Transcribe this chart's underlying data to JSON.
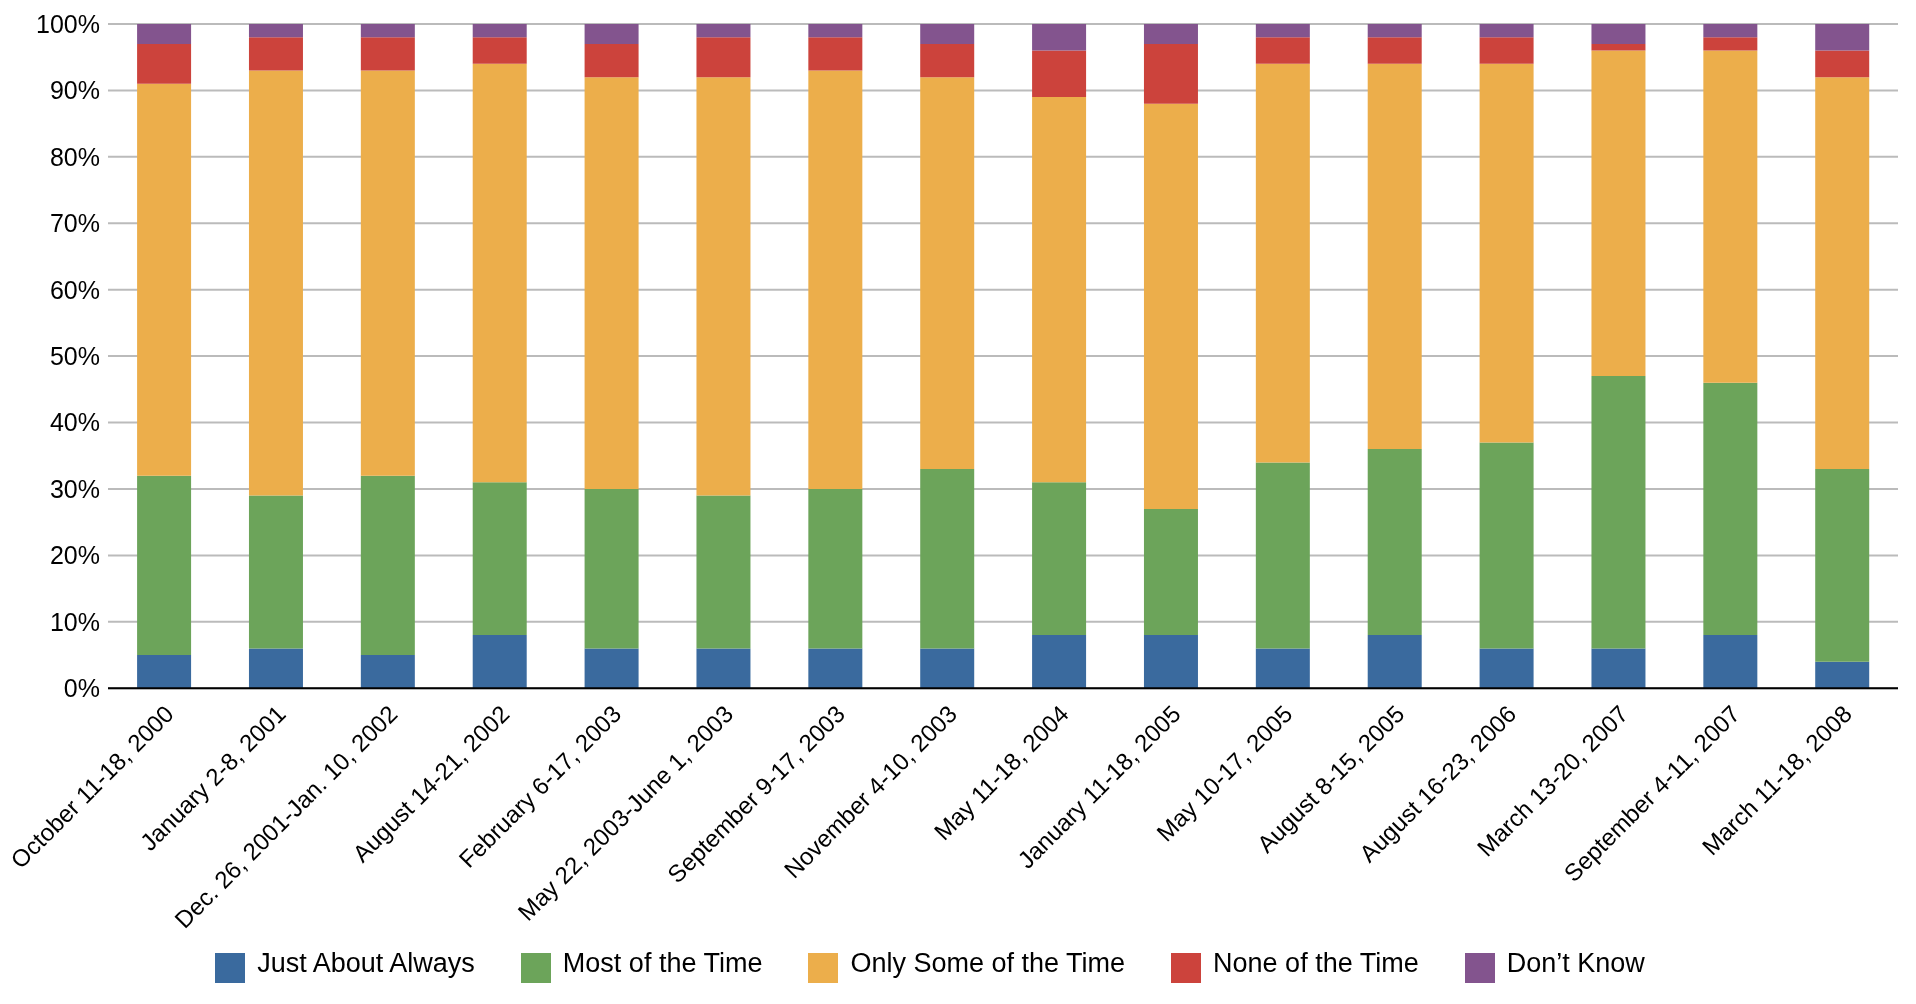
{
  "chart_data": {
    "type": "bar",
    "stacked": true,
    "categories": [
      "October 11-18, 2000",
      "January 2-8, 2001",
      "Dec. 26, 2001-Jan. 10, 2002",
      "August 14-21, 2002",
      "February 6-17, 2003",
      "May 22, 2003-June 1, 2003",
      "September 9-17, 2003",
      "November 4-10, 2003",
      "May 11-18, 2004",
      "January 11-18, 2005",
      "May 10-17, 2005",
      "August 8-15, 2005",
      "August 16-23, 2006",
      "March 13-20, 2007",
      "September 4-11, 2007",
      "March 11-18, 2008"
    ],
    "series": [
      {
        "name": "Just About Always",
        "color": "#3a6a9e",
        "values": [
          5,
          6,
          5,
          8,
          6,
          6,
          6,
          6,
          8,
          8,
          6,
          8,
          6,
          6,
          8,
          4
        ]
      },
      {
        "name": "Most of the Time",
        "color": "#6ca45a",
        "values": [
          27,
          23,
          27,
          23,
          24,
          23,
          24,
          27,
          23,
          19,
          28,
          28,
          31,
          41,
          38,
          29
        ]
      },
      {
        "name": "Only Some of the Time",
        "color": "#ecae4b",
        "values": [
          59,
          64,
          61,
          63,
          62,
          63,
          63,
          59,
          58,
          61,
          60,
          58,
          57,
          49,
          50,
          59
        ]
      },
      {
        "name": "None of the Time",
        "color": "#cc433c",
        "values": [
          6,
          5,
          5,
          4,
          5,
          6,
          5,
          5,
          7,
          9,
          4,
          4,
          4,
          1,
          2,
          4
        ]
      },
      {
        "name": "Don’t Know",
        "color": "#83548e",
        "values": [
          3,
          2,
          2,
          2,
          3,
          2,
          2,
          3,
          4,
          3,
          2,
          2,
          2,
          3,
          2,
          4
        ]
      }
    ],
    "ylim": [
      0,
      100
    ],
    "yticks": [
      {
        "value": 0,
        "label": "0%"
      },
      {
        "value": 10,
        "label": "10%"
      },
      {
        "value": 20,
        "label": "20%"
      },
      {
        "value": 30,
        "label": "30%"
      },
      {
        "value": 40,
        "label": "40%"
      },
      {
        "value": 50,
        "label": "50%"
      },
      {
        "value": 60,
        "label": "60%"
      },
      {
        "value": 70,
        "label": "70%"
      },
      {
        "value": 80,
        "label": "80%"
      },
      {
        "value": 90,
        "label": "90%"
      },
      {
        "value": 100,
        "label": "100%"
      }
    ],
    "grid": "y",
    "legend": "bottom"
  }
}
